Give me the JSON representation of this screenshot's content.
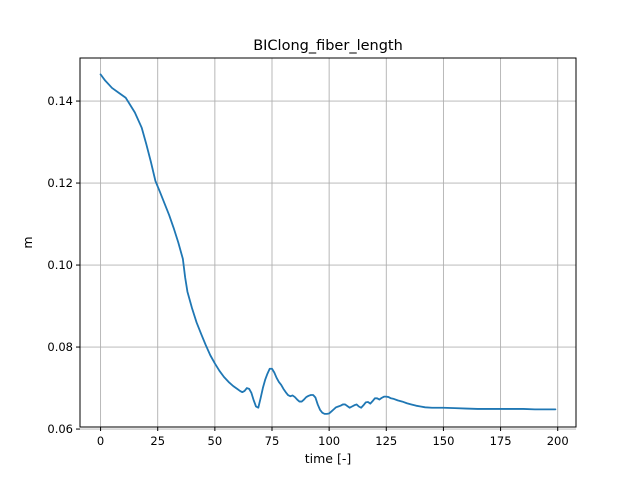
{
  "chart_data": {
    "type": "line",
    "title": "BIClong_fiber_length",
    "xlabel": "time [-]",
    "ylabel": "m",
    "xlim": [
      -9,
      208
    ],
    "ylim": [
      0.0605,
      0.1505
    ],
    "x_ticks": [
      0,
      25,
      50,
      75,
      100,
      125,
      150,
      175,
      200
    ],
    "y_ticks": [
      0.06,
      0.08,
      0.1,
      0.12,
      0.14
    ],
    "y_tick_labels": [
      "0.06",
      "0.08",
      "0.10",
      "0.12",
      "0.14"
    ],
    "grid": true,
    "colors": {
      "line": "#1f77b4",
      "grid": "#b0b0b0"
    },
    "series": [
      {
        "x": [
          0,
          2,
          5,
          8,
          11,
          13,
          15,
          18,
          20,
          22,
          24,
          26,
          28,
          30,
          32,
          34,
          36,
          37,
          38,
          40,
          42,
          44,
          46,
          48,
          50,
          52,
          54,
          56,
          58,
          60,
          61,
          62,
          63,
          64,
          65,
          66,
          67,
          68,
          69,
          70,
          71,
          72,
          73,
          74,
          75,
          76,
          77,
          78,
          79,
          80,
          81,
          82,
          83,
          84,
          85,
          86,
          87,
          88,
          89,
          90,
          91,
          92,
          93,
          94,
          95,
          96,
          97,
          98,
          99,
          100,
          101,
          102,
          103,
          104,
          105,
          106,
          107,
          108,
          109,
          110,
          111,
          112,
          113,
          114,
          115,
          116,
          117,
          118,
          119,
          120,
          121,
          122,
          123,
          124,
          125,
          126,
          127,
          128,
          130,
          132,
          134,
          136,
          138,
          140,
          142,
          145,
          150,
          155,
          160,
          165,
          170,
          175,
          180,
          185,
          190,
          195,
          199
        ],
        "values": [
          0.1465,
          0.145,
          0.1432,
          0.142,
          0.1408,
          0.139,
          0.1372,
          0.1335,
          0.1295,
          0.1252,
          0.1205,
          0.1178,
          0.115,
          0.1122,
          0.109,
          0.1055,
          0.1015,
          0.097,
          0.0935,
          0.0895,
          0.086,
          0.0832,
          0.0805,
          0.078,
          0.076,
          0.0742,
          0.0727,
          0.0715,
          0.0705,
          0.0697,
          0.0693,
          0.069,
          0.0693,
          0.07,
          0.0698,
          0.0688,
          0.067,
          0.0655,
          0.0652,
          0.0675,
          0.07,
          0.072,
          0.0735,
          0.0747,
          0.0747,
          0.0738,
          0.0725,
          0.0715,
          0.0708,
          0.0698,
          0.069,
          0.0683,
          0.068,
          0.0682,
          0.0678,
          0.0672,
          0.0667,
          0.0667,
          0.0672,
          0.0678,
          0.0681,
          0.0683,
          0.0683,
          0.0677,
          0.066,
          0.0647,
          0.064,
          0.0637,
          0.0637,
          0.0638,
          0.0643,
          0.0648,
          0.0653,
          0.0655,
          0.0657,
          0.066,
          0.066,
          0.0656,
          0.0652,
          0.0655,
          0.0658,
          0.066,
          0.0655,
          0.0652,
          0.0658,
          0.0665,
          0.0666,
          0.0662,
          0.0668,
          0.0675,
          0.0675,
          0.0672,
          0.0676,
          0.0679,
          0.0679,
          0.0678,
          0.0675,
          0.0674,
          0.067,
          0.0667,
          0.0663,
          0.066,
          0.0657,
          0.0655,
          0.0653,
          0.0652,
          0.0652,
          0.0651,
          0.065,
          0.0649,
          0.0649,
          0.0649,
          0.0649,
          0.0649,
          0.0648,
          0.0648,
          0.0648
        ]
      }
    ]
  }
}
